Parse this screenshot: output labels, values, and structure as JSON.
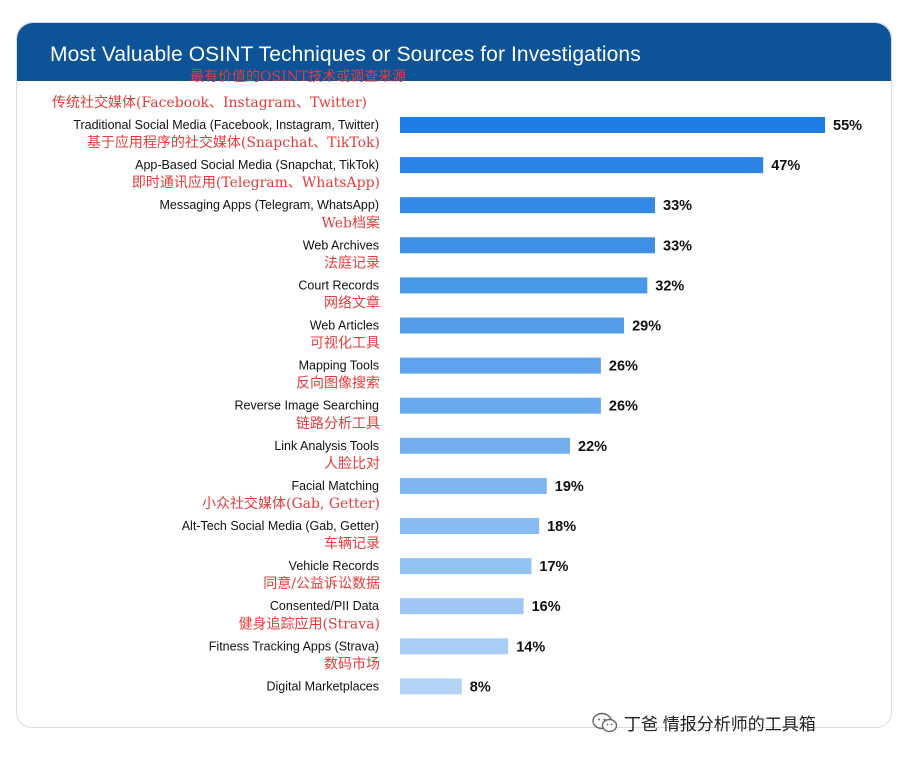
{
  "chart_data": {
    "type": "bar",
    "orientation": "horizontal",
    "title": "Most Valuable OSINT Techniques or Sources for Investigations",
    "subtitle_cn": "最有价值的OSINT技术或调查来源",
    "categories": [
      "Traditional Social Media (Facebook, Instagram, Twitter)",
      "App-Based Social Media (Snapchat, TikTok)",
      "Messaging Apps (Telegram, WhatsApp)",
      "Web Archives",
      "Court Records",
      "Web Articles",
      "Mapping Tools",
      "Reverse Image Searching",
      "Link Analysis Tools",
      "Facial Matching",
      "Alt-Tech Social Media (Gab, Getter)",
      "Vehicle Records",
      "Consented/PII Data",
      "Fitness Tracking Apps (Strava)",
      "Digital Marketplaces"
    ],
    "categories_cn": [
      "传统社交媒体(Facebook、Instagram、Twitter)",
      "基于应用程序的社交媒体(Snapchat、TikTok)",
      "即时通讯应用(Telegram、WhatsApp)",
      "Web档案",
      "法庭记录",
      "网络文章",
      "可视化工具",
      "反向图像搜索",
      "链路分析工具",
      "人脸比对",
      "小众社交媒体(Gab, Getter)",
      "车辆记录",
      "同意/公益诉讼数据",
      "健身追踪应用(Strava)",
      "数码市场"
    ],
    "values": [
      55,
      47,
      33,
      33,
      32,
      29,
      26,
      26,
      22,
      19,
      18,
      17,
      16,
      14,
      8
    ],
    "value_labels": [
      "55%",
      "47%",
      "33%",
      "33%",
      "32%",
      "29%",
      "26%",
      "26%",
      "22%",
      "19%",
      "18%",
      "17%",
      "16%",
      "14%",
      "8%"
    ],
    "xlim": [
      0,
      55
    ],
    "grid": false,
    "legend": "none"
  },
  "watermark": {
    "text": "丁爸 情报分析师的工具箱",
    "icon": "wechat-icon"
  },
  "colors": {
    "header": "#0d5398",
    "bar_dark": "#1e7ee3",
    "bar_light": "#b3d4f6",
    "cn_label": "#e23c3c"
  }
}
